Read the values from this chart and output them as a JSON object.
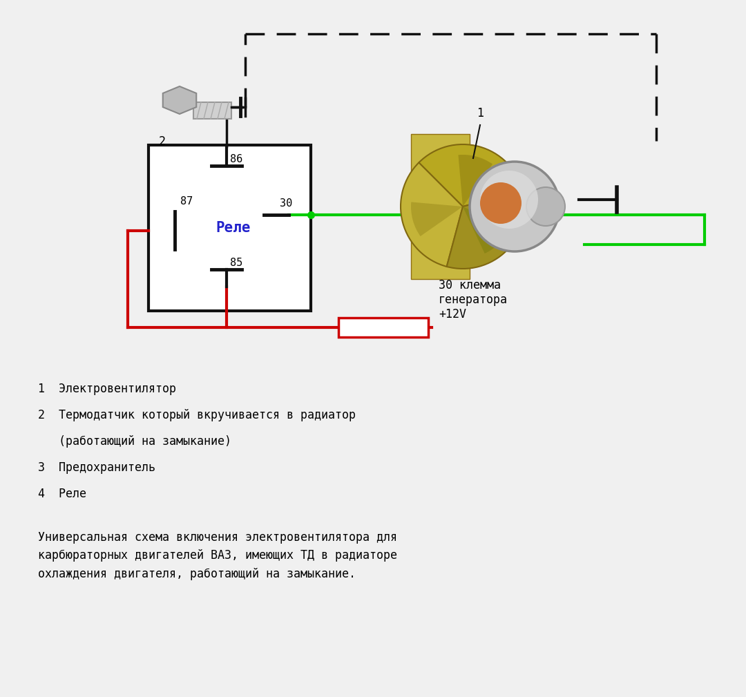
{
  "bg_color": "#f0f0f0",
  "relay_label": "Реле",
  "relay_label_color": "#2222cc",
  "red_color": "#cc0000",
  "green_color": "#00cc00",
  "black_color": "#111111",
  "legend_lines": [
    "1  Электровентилятор",
    "2  Термодатчик который вкручивается в радиатор",
    "   (работающий на замыкание)",
    "3  Предохранитель",
    "4  Реле"
  ],
  "footer_text": "Универсальная схема включения электровентилятора для\nкарбюраторных двигателей ВАЗ, имеющих ТД в радиаторе\nохлаждения двигателя, работающий на замыкание.",
  "sensor_label": "2",
  "motor_label": "1",
  "generator_label": "30 клемма\nгенератора\n+12V"
}
